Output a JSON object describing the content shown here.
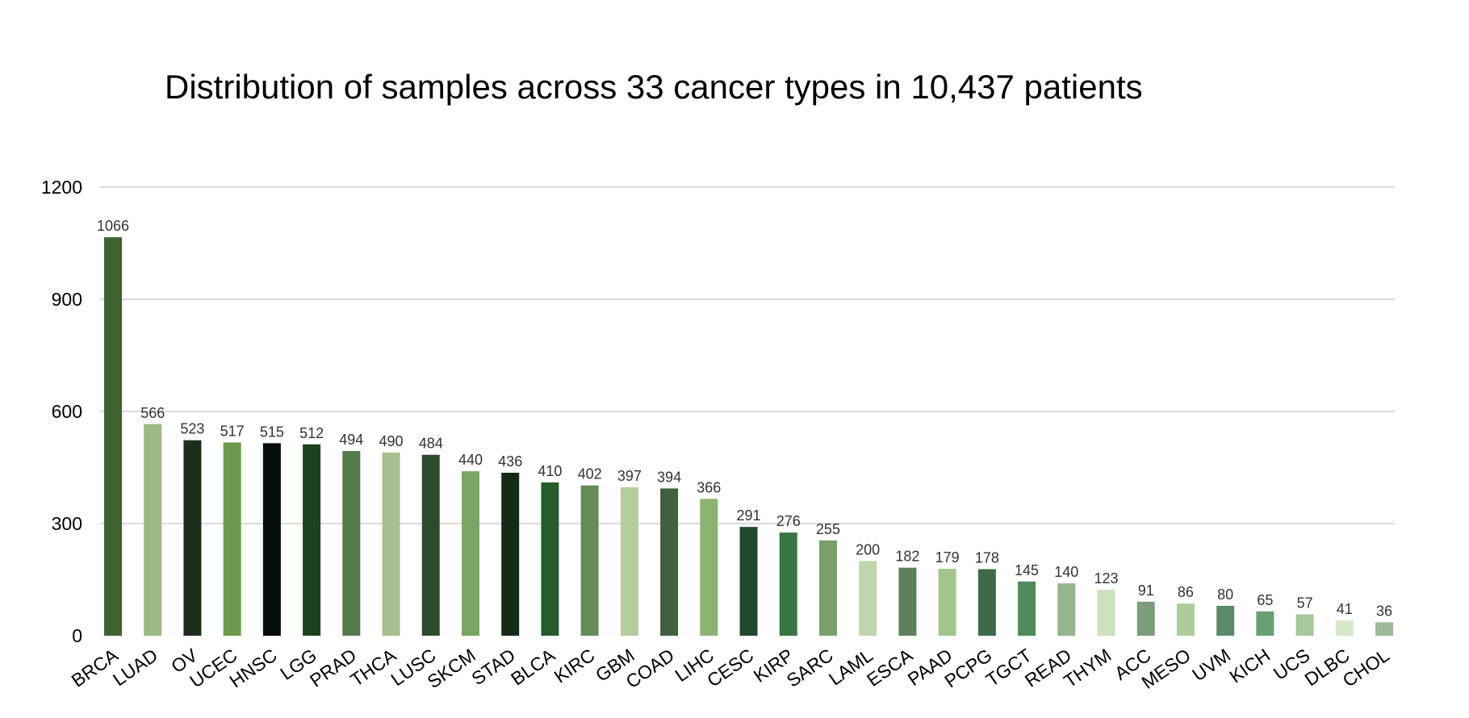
{
  "chart_data": {
    "type": "bar",
    "title": "Distribution of samples across 33 cancer types in 10,437 patients",
    "xlabel": "",
    "ylabel": "",
    "ylim": [
      0,
      1200
    ],
    "yticks": [
      0,
      300,
      600,
      900,
      1200
    ],
    "grid": true,
    "categories": [
      "BRCA",
      "LUAD",
      "OV",
      "UCEC",
      "HNSC",
      "LGG",
      "PRAD",
      "THCA",
      "LUSC",
      "SKCM",
      "STAD",
      "BLCA",
      "KIRC",
      "GBM",
      "COAD",
      "LIHC",
      "CESC",
      "KIRP",
      "SARC",
      "LAML",
      "ESCA",
      "PAAD",
      "PCPG",
      "TGCT",
      "READ",
      "THYM",
      "ACC",
      "MESO",
      "UVM",
      "KICH",
      "UCS",
      "DLBC",
      "CHOL"
    ],
    "values": [
      1066,
      566,
      523,
      517,
      515,
      512,
      494,
      490,
      484,
      440,
      436,
      410,
      402,
      397,
      394,
      366,
      291,
      276,
      255,
      200,
      182,
      179,
      178,
      145,
      140,
      123,
      91,
      86,
      80,
      65,
      57,
      41,
      36
    ],
    "colors": [
      "#3f6233",
      "#9cb883",
      "#1c2f1a",
      "#6a9a4b",
      "#050d08",
      "#1a4320",
      "#527a4a",
      "#a6c18b",
      "#2e4a2c",
      "#7aa563",
      "#142b17",
      "#255b2c",
      "#658b56",
      "#b5cc9c",
      "#40603f",
      "#8bb471",
      "#214a2b",
      "#387544",
      "#7a9e6c",
      "#c0d6ae",
      "#5f7f5c",
      "#a2c58c",
      "#3e6a47",
      "#4d8a5c",
      "#96b48d",
      "#cee0be",
      "#7c9c7b",
      "#adcc9a",
      "#5a8a68",
      "#68a073",
      "#a8c79a",
      "#d6e8cc",
      "#9cbb98"
    ]
  }
}
